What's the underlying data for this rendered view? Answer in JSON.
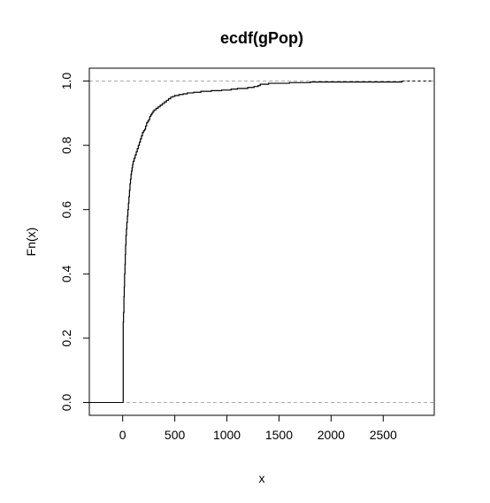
{
  "chart_data": {
    "type": "line",
    "step": true,
    "title": "ecdf(gPop)",
    "xlabel": "x",
    "ylabel": "Fn(x)",
    "xlim": [
      -320,
      2990
    ],
    "ylim": [
      -0.04,
      1.04
    ],
    "xticks": [
      0,
      500,
      1000,
      1500,
      2000,
      2500
    ],
    "xtick_labels": [
      "0",
      "500",
      "1000",
      "1500",
      "2000",
      "2500"
    ],
    "yticks": [
      0,
      0.2,
      0.4,
      0.6,
      0.8,
      1.0
    ],
    "ytick_labels": [
      "0.0",
      "0.2",
      "0.4",
      "0.6",
      "0.8",
      "1.0"
    ],
    "reference_lines_y": [
      0,
      1
    ],
    "reference_line_color": "#aaaaaa",
    "line_color": "#000000",
    "x_min_value": 5,
    "x_max_value": 2680,
    "series": [
      {
        "x": [
          5,
          8,
          12,
          15,
          18,
          22,
          25,
          28,
          32,
          36,
          40,
          45,
          50,
          55,
          60,
          65,
          70,
          75,
          80,
          85,
          90,
          95,
          100,
          110,
          120,
          130,
          140,
          150,
          160,
          170,
          180,
          190,
          200,
          210,
          220,
          230,
          240,
          250,
          260,
          270,
          280,
          290,
          300,
          320,
          340,
          360,
          380,
          400,
          420,
          440,
          460,
          480,
          500,
          540,
          580,
          620,
          680,
          750,
          850,
          950,
          1040,
          1100,
          1200,
          1260,
          1300,
          1320,
          1400,
          1600,
          1800,
          2680
        ],
        "y": [
          0.25,
          0.28,
          0.33,
          0.36,
          0.4,
          0.43,
          0.46,
          0.49,
          0.52,
          0.54,
          0.56,
          0.58,
          0.6,
          0.62,
          0.64,
          0.66,
          0.68,
          0.695,
          0.71,
          0.72,
          0.73,
          0.74,
          0.75,
          0.76,
          0.77,
          0.78,
          0.79,
          0.8,
          0.81,
          0.82,
          0.83,
          0.84,
          0.845,
          0.85,
          0.86,
          0.87,
          0.875,
          0.88,
          0.89,
          0.895,
          0.9,
          0.905,
          0.91,
          0.915,
          0.92,
          0.925,
          0.93,
          0.935,
          0.94,
          0.945,
          0.95,
          0.952,
          0.955,
          0.958,
          0.96,
          0.963,
          0.965,
          0.968,
          0.97,
          0.972,
          0.975,
          0.977,
          0.98,
          0.983,
          0.986,
          0.99,
          0.993,
          0.995,
          0.997,
          1.0
        ]
      }
    ]
  }
}
